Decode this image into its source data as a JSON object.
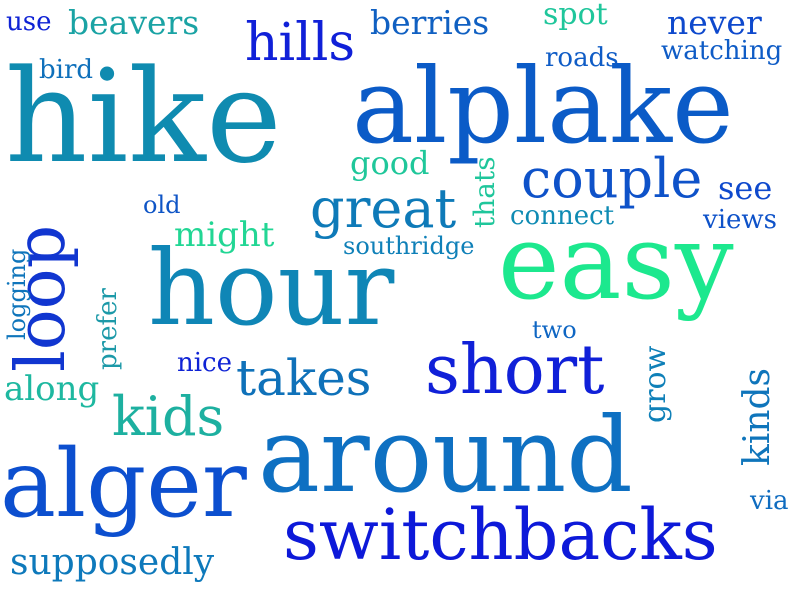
{
  "words": {
    "hike": {
      "text": "hike",
      "color": "#0f8bb0"
    },
    "alplake": {
      "text": "alplake",
      "color": "#0b5bc7"
    },
    "around": {
      "text": "around",
      "color": "#0e70c2"
    },
    "hour": {
      "text": "hour",
      "color": "#0f86b6"
    },
    "easy": {
      "text": "easy",
      "color": "#1ce88e"
    },
    "alger": {
      "text": "alger",
      "color": "#0c4fcf"
    },
    "switchbacks": {
      "text": "switchbacks",
      "color": "#0d19d9"
    },
    "short": {
      "text": "short",
      "color": "#1020d8"
    },
    "loop": {
      "text": "loop",
      "color": "#1136d0"
    },
    "couple": {
      "text": "couple",
      "color": "#0e52c9"
    },
    "great": {
      "text": "great",
      "color": "#0e7ab8"
    },
    "takes": {
      "text": "takes",
      "color": "#0f71b9"
    },
    "kids": {
      "text": "kids",
      "color": "#1db0a0"
    },
    "hills": {
      "text": "hills",
      "color": "#1020d8"
    },
    "beavers": {
      "text": "beavers",
      "color": "#1aa3a4"
    },
    "berries": {
      "text": "berries",
      "color": "#1060c2"
    },
    "never": {
      "text": "never",
      "color": "#0e49cd"
    },
    "watching": {
      "text": "watching",
      "color": "#0f5cc6"
    },
    "supposedly": {
      "text": "supposedly",
      "color": "#0e79bb"
    },
    "might": {
      "text": "might",
      "color": "#22d694"
    },
    "southridge": {
      "text": "southridge",
      "color": "#0f80b8"
    },
    "good": {
      "text": "good",
      "color": "#1fc79a"
    },
    "thats": {
      "text": "thats",
      "color": "#1fc69b"
    },
    "spot": {
      "text": "spot",
      "color": "#1fc69b"
    },
    "see": {
      "text": "see",
      "color": "#0e49cd"
    },
    "connect": {
      "text": "connect",
      "color": "#0f8bb3"
    },
    "views": {
      "text": "views",
      "color": "#0e52c9"
    },
    "roads": {
      "text": "roads",
      "color": "#0f5cc6"
    },
    "bird": {
      "text": "bird",
      "color": "#0f70bb"
    },
    "use": {
      "text": "use",
      "color": "#0f23d5"
    },
    "old": {
      "text": "old",
      "color": "#0f55c6"
    },
    "logging": {
      "text": "logging",
      "color": "#0f75bb"
    },
    "prefer": {
      "text": "prefer",
      "color": "#1c99a8"
    },
    "along": {
      "text": "along",
      "color": "#1eb8a0"
    },
    "nice": {
      "text": "nice",
      "color": "#0f23d5"
    },
    "two": {
      "text": "two",
      "color": "#0f66c3"
    },
    "grow": {
      "text": "grow",
      "color": "#0f80b8"
    },
    "kinds": {
      "text": "kinds",
      "color": "#0f75bb"
    },
    "via": {
      "text": "via",
      "color": "#0f6cc0"
    }
  }
}
